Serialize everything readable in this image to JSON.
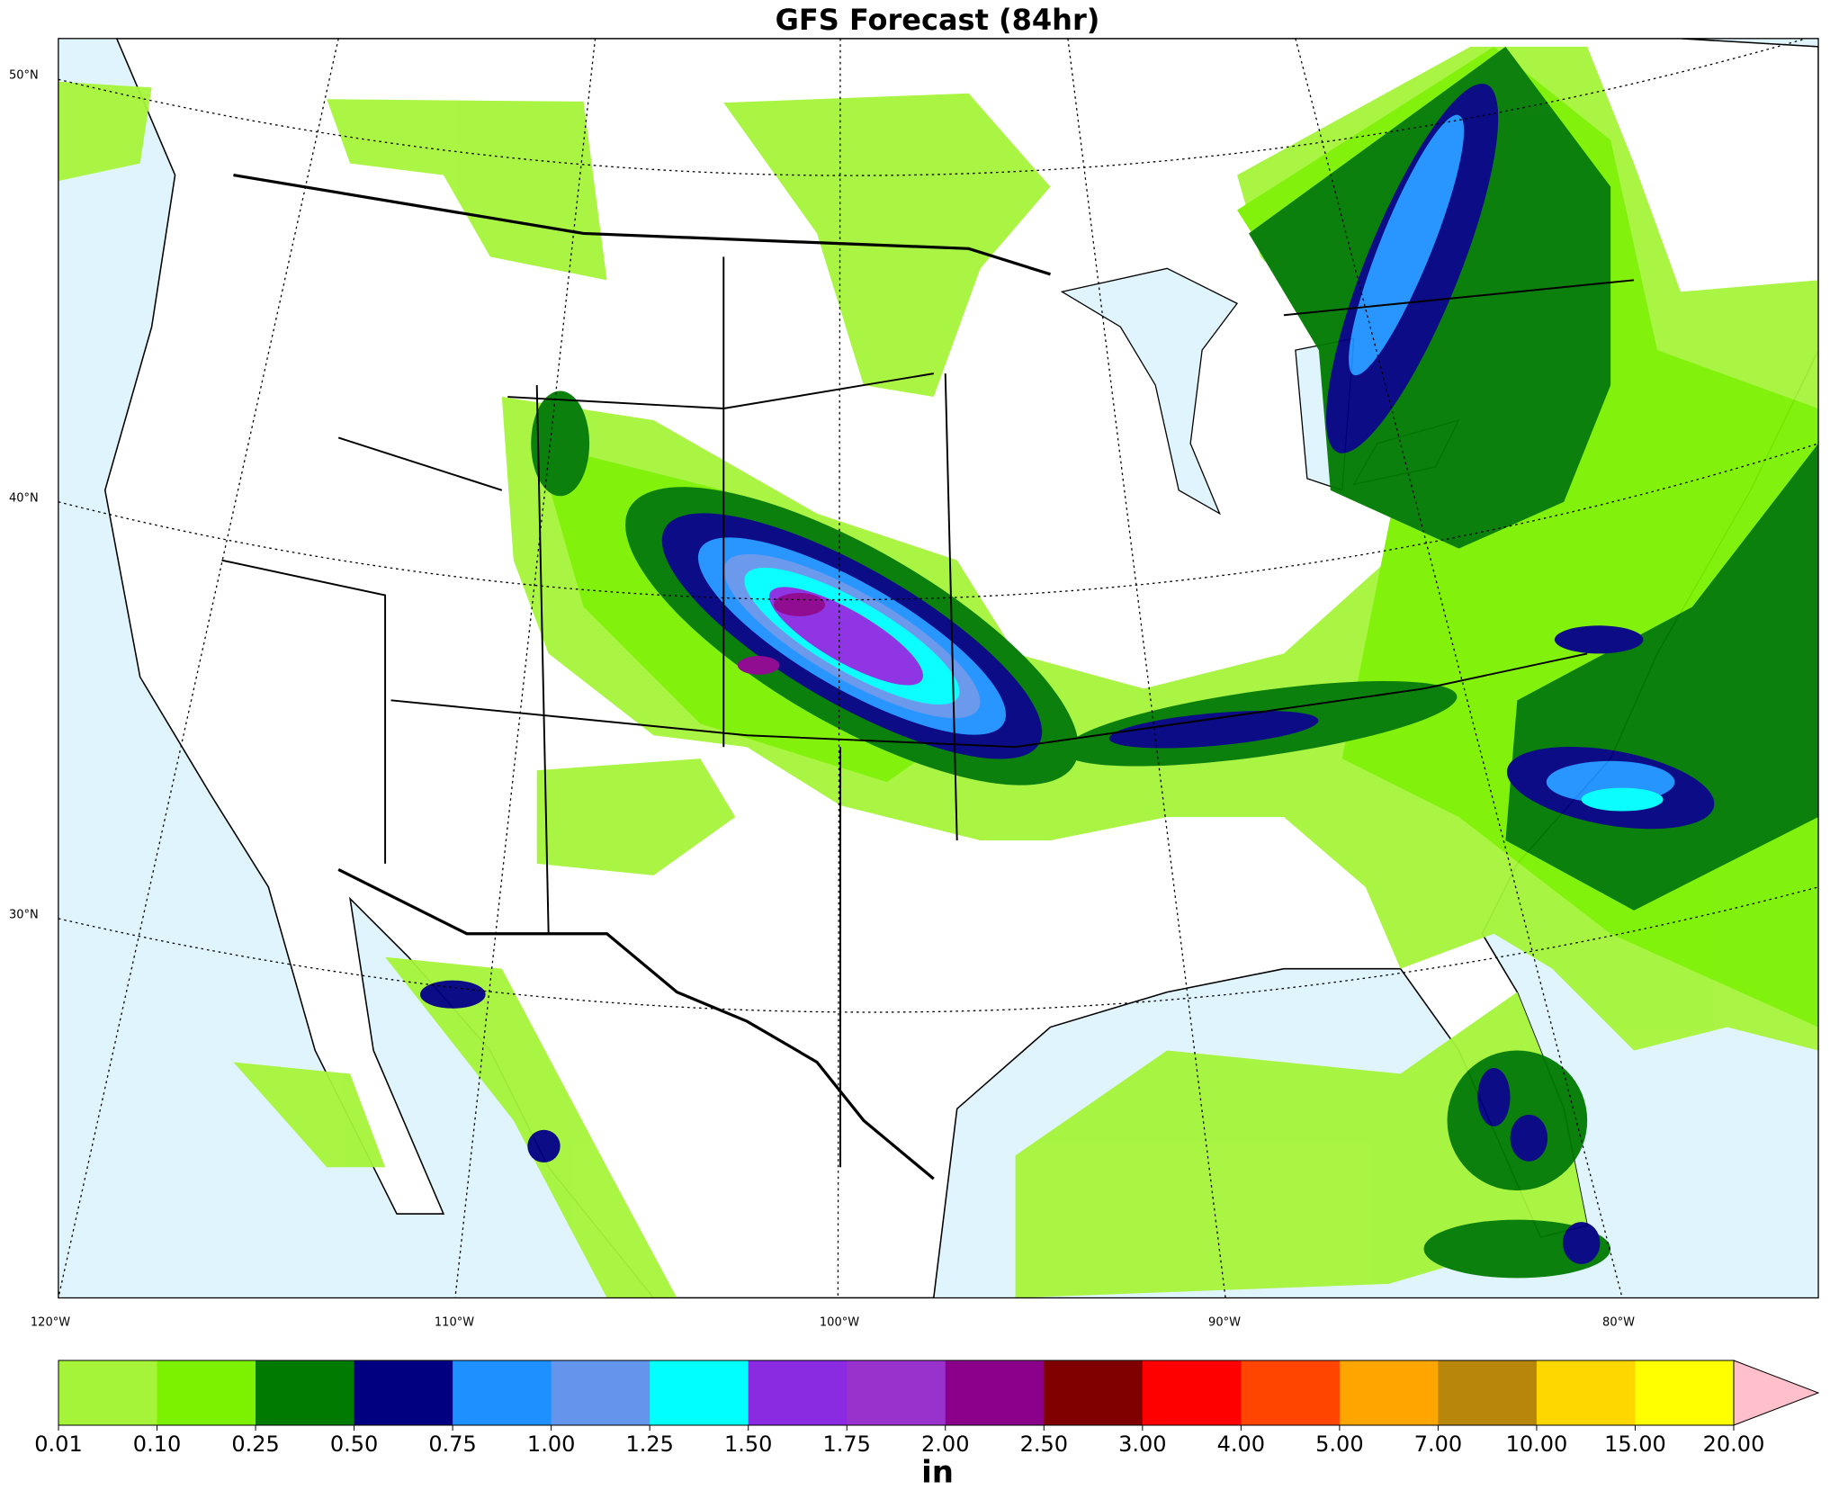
{
  "title": "GFS Forecast (84hr)",
  "lat_labels": [
    "50°N",
    "40°N",
    "30°N"
  ],
  "lon_labels": [
    "120°W",
    "110°W",
    "100°W",
    "90°W",
    "80°W"
  ],
  "colorbar": {
    "unit": "in",
    "ticks": [
      0.01,
      {
        "value": 0.1,
        "label": "0.10"
      },
      0.25,
      {
        "value": 0.5,
        "label": "0.50"
      },
      0.75,
      {
        "value": 1.0,
        "label": "1.00"
      },
      1.25,
      {
        "value": 1.5,
        "label": "1.50"
      },
      1.75,
      {
        "value": 2.0,
        "label": "2.00"
      },
      {
        "value": 2.5,
        "label": "2.50"
      },
      {
        "value": 3.0,
        "label": "3.00"
      },
      {
        "value": 4.0,
        "label": "4.00"
      },
      {
        "value": 5.0,
        "label": "5.00"
      },
      {
        "value": 7.0,
        "label": "7.00"
      },
      {
        "value": 10.0,
        "label": "10.00"
      },
      {
        "value": 15.0,
        "label": "15.00"
      },
      {
        "value": 20.0,
        "label": "20.00"
      }
    ],
    "colors": [
      "#a6f43a",
      "#7cf200",
      "#007a00",
      "#000080",
      "#1e90ff",
      "#6495ed",
      "#00ffff",
      "#8a2be2",
      "#9932cc",
      "#8b008b",
      "#800000",
      "#ff0000",
      "#ff4500",
      "#ffa500",
      "#b8860b",
      "#ffd700",
      "#ffff00"
    ],
    "extend_color": "#ffc0cb"
  }
}
